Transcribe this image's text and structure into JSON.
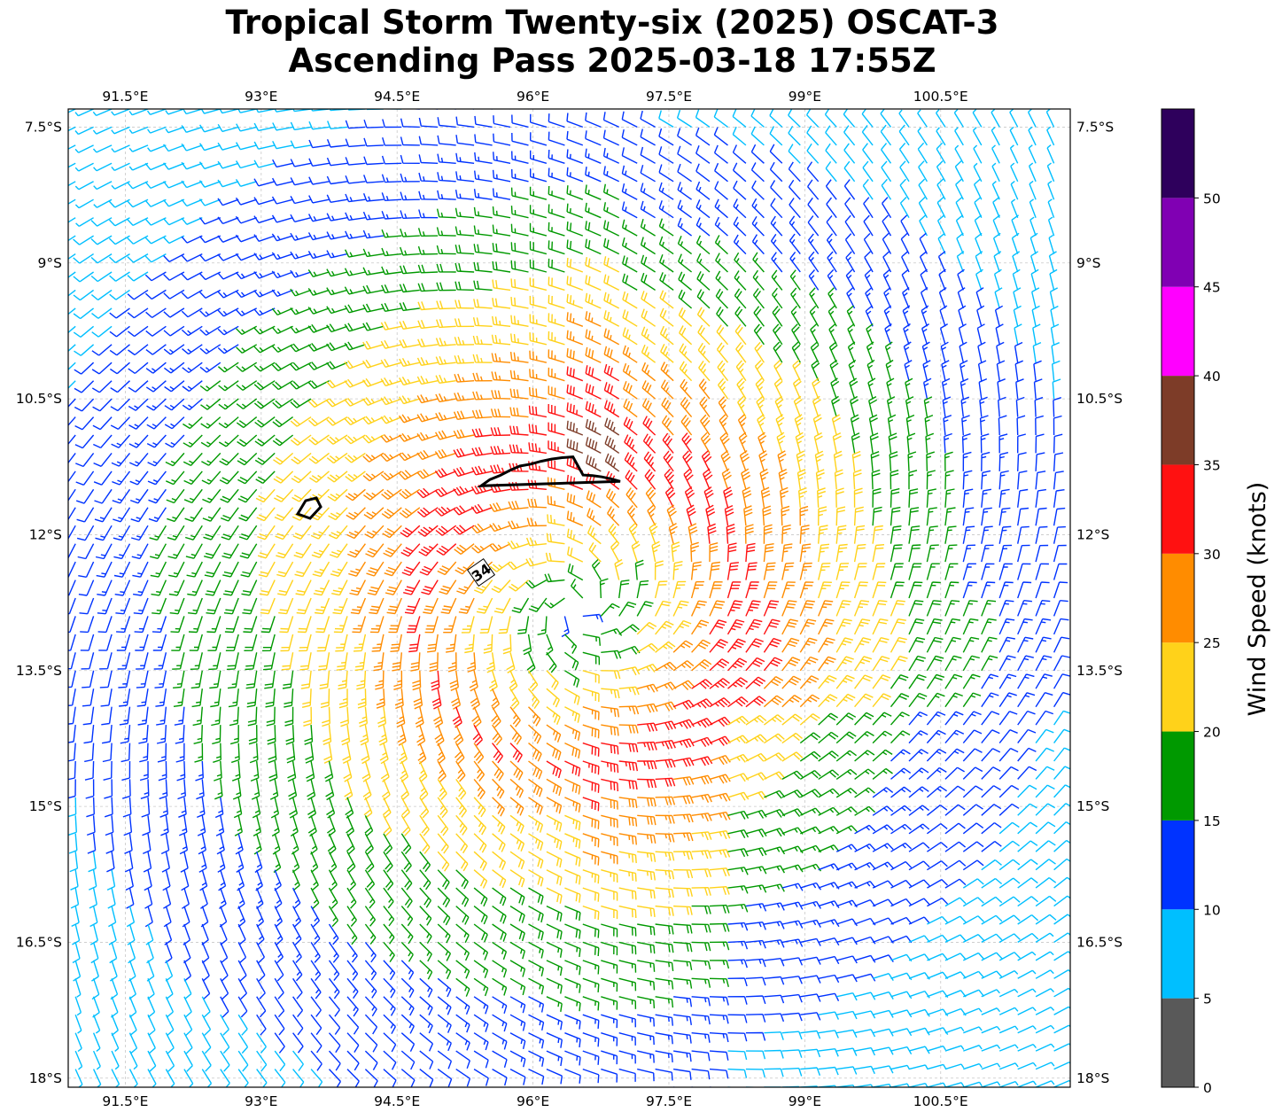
{
  "title": {
    "line1": "Tropical Storm Twenty-six (2025) OSCAT-3",
    "line2": "Ascending Pass 2025-03-18 17:55Z"
  },
  "map": {
    "lon_range": [
      90.87,
      101.93
    ],
    "lat_range": [
      -18.1,
      -7.3
    ],
    "lon_ticks": [
      91.5,
      93,
      94.5,
      96,
      97.5,
      99,
      100.5
    ],
    "lon_tick_labels": [
      "91.5°E",
      "93°E",
      "94.5°E",
      "96°E",
      "97.5°E",
      "99°E",
      "100.5°E"
    ],
    "lat_ticks": [
      -7.5,
      -9,
      -10.5,
      -12,
      -13.5,
      -15,
      -16.5,
      -18
    ],
    "lat_tick_labels": [
      "7.5°S",
      "9°S",
      "10.5°S",
      "12°S",
      "13.5°S",
      "15°S",
      "16.5°S",
      "18°S"
    ],
    "gridlines": true,
    "storm_center": {
      "lon": 96.5,
      "lat": -12.8
    },
    "contour": {
      "level_label": "34",
      "units": "kt"
    }
  },
  "colorbar": {
    "label": "Wind Speed (knots)",
    "tick_values": [
      0,
      5,
      10,
      15,
      20,
      25,
      30,
      35,
      40,
      45,
      50
    ],
    "tick_labels": [
      "0",
      "5",
      "10",
      "15",
      "20",
      "25",
      "30",
      "35",
      "40",
      "45",
      "50"
    ],
    "bins": [
      {
        "min": 0,
        "max": 5,
        "color": "#595959"
      },
      {
        "min": 5,
        "max": 10,
        "color": "#00bfff"
      },
      {
        "min": 10,
        "max": 15,
        "color": "#0033ff"
      },
      {
        "min": 15,
        "max": 20,
        "color": "#009900"
      },
      {
        "min": 20,
        "max": 25,
        "color": "#ffd21a"
      },
      {
        "min": 25,
        "max": 30,
        "color": "#ff8c00"
      },
      {
        "min": 30,
        "max": 35,
        "color": "#ff1111"
      },
      {
        "min": 35,
        "max": 40,
        "color": "#7d3c28"
      },
      {
        "min": 40,
        "max": 45,
        "color": "#ff00ff"
      },
      {
        "min": 45,
        "max": 50,
        "color": "#8000b3"
      },
      {
        "min": 50,
        "max": 55,
        "color": "#2e005c"
      }
    ]
  }
}
